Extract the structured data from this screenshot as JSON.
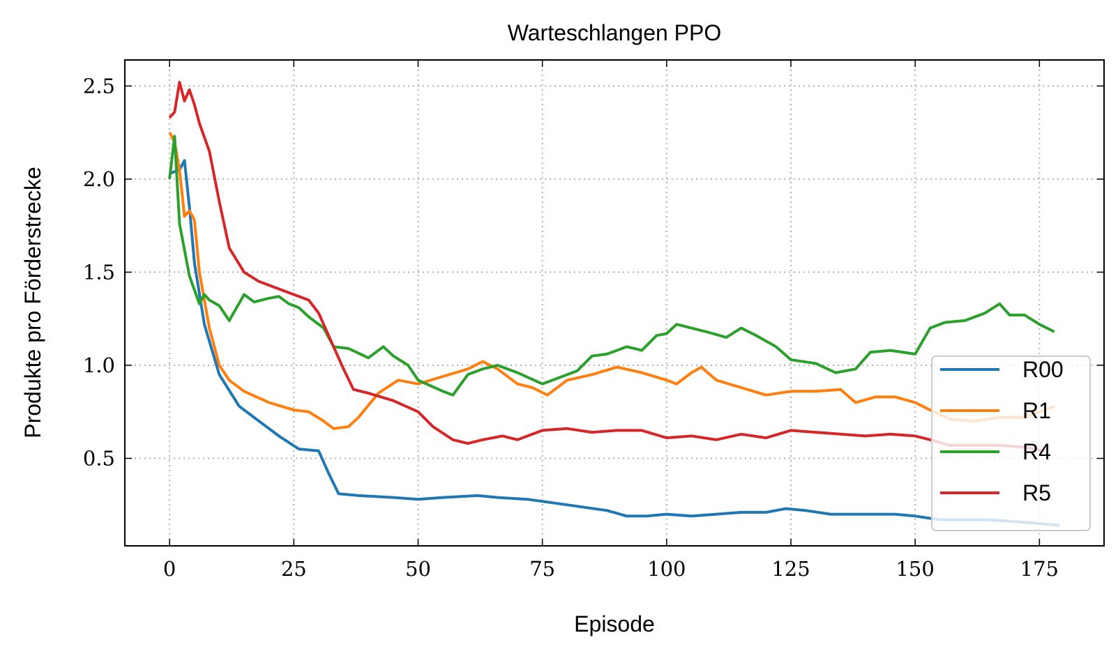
{
  "chart_data": {
    "type": "line",
    "title": "Warteschlangen PPO",
    "xlabel": "Episode",
    "ylabel": "Produkte pro Förderstrecke",
    "xlim": [
      -9,
      188
    ],
    "ylim": [
      0.03,
      2.64
    ],
    "xticks": [
      0,
      25,
      50,
      75,
      100,
      125,
      150,
      175
    ],
    "yticks": [
      0.5,
      1.0,
      1.5,
      2.0,
      2.5
    ],
    "xtick_labels": [
      "0",
      "25",
      "50",
      "75",
      "100",
      "125",
      "150",
      "175"
    ],
    "ytick_labels": [
      "0.5",
      "1.0",
      "1.5",
      "2.0",
      "2.5"
    ],
    "grid": true,
    "legend_position": "lower-right",
    "series": [
      {
        "name": "R00",
        "color": "#1f77b4",
        "points": [
          [
            0,
            2.03
          ],
          [
            2,
            2.05
          ],
          [
            3,
            2.1
          ],
          [
            4,
            1.85
          ],
          [
            5,
            1.55
          ],
          [
            7,
            1.22
          ],
          [
            10,
            0.95
          ],
          [
            14,
            0.78
          ],
          [
            18,
            0.7
          ],
          [
            22,
            0.62
          ],
          [
            26,
            0.55
          ],
          [
            30,
            0.54
          ],
          [
            32,
            0.42
          ],
          [
            34,
            0.31
          ],
          [
            38,
            0.3
          ],
          [
            45,
            0.29
          ],
          [
            50,
            0.28
          ],
          [
            55,
            0.29
          ],
          [
            62,
            0.3
          ],
          [
            66,
            0.29
          ],
          [
            72,
            0.28
          ],
          [
            80,
            0.25
          ],
          [
            88,
            0.22
          ],
          [
            92,
            0.19
          ],
          [
            96,
            0.19
          ],
          [
            100,
            0.2
          ],
          [
            105,
            0.19
          ],
          [
            110,
            0.2
          ],
          [
            115,
            0.21
          ],
          [
            120,
            0.21
          ],
          [
            124,
            0.23
          ],
          [
            128,
            0.22
          ],
          [
            133,
            0.2
          ],
          [
            140,
            0.2
          ],
          [
            146,
            0.2
          ],
          [
            150,
            0.19
          ],
          [
            155,
            0.17
          ],
          [
            160,
            0.17
          ],
          [
            165,
            0.17
          ],
          [
            170,
            0.16
          ],
          [
            175,
            0.15
          ],
          [
            179,
            0.14
          ]
        ]
      },
      {
        "name": "R1",
        "color": "#ff7f0e",
        "points": [
          [
            0,
            2.25
          ],
          [
            1,
            2.2
          ],
          [
            2,
            2.05
          ],
          [
            3,
            1.8
          ],
          [
            4,
            1.83
          ],
          [
            5,
            1.78
          ],
          [
            6,
            1.5
          ],
          [
            8,
            1.2
          ],
          [
            10,
            1.0
          ],
          [
            12,
            0.92
          ],
          [
            15,
            0.86
          ],
          [
            20,
            0.8
          ],
          [
            25,
            0.76
          ],
          [
            28,
            0.75
          ],
          [
            31,
            0.7
          ],
          [
            33,
            0.66
          ],
          [
            36,
            0.67
          ],
          [
            38,
            0.72
          ],
          [
            42,
            0.85
          ],
          [
            46,
            0.92
          ],
          [
            50,
            0.9
          ],
          [
            55,
            0.94
          ],
          [
            60,
            0.98
          ],
          [
            63,
            1.02
          ],
          [
            66,
            0.98
          ],
          [
            70,
            0.9
          ],
          [
            73,
            0.88
          ],
          [
            76,
            0.84
          ],
          [
            80,
            0.92
          ],
          [
            85,
            0.95
          ],
          [
            90,
            0.99
          ],
          [
            95,
            0.96
          ],
          [
            100,
            0.92
          ],
          [
            102,
            0.9
          ],
          [
            105,
            0.96
          ],
          [
            107,
            0.99
          ],
          [
            110,
            0.92
          ],
          [
            115,
            0.88
          ],
          [
            120,
            0.84
          ],
          [
            125,
            0.86
          ],
          [
            130,
            0.86
          ],
          [
            135,
            0.87
          ],
          [
            138,
            0.8
          ],
          [
            142,
            0.83
          ],
          [
            146,
            0.83
          ],
          [
            150,
            0.8
          ],
          [
            153,
            0.76
          ],
          [
            157,
            0.71
          ],
          [
            162,
            0.7
          ],
          [
            167,
            0.72
          ],
          [
            172,
            0.72
          ],
          [
            178,
            0.78
          ]
        ]
      },
      {
        "name": "R4",
        "color": "#2ca02c",
        "points": [
          [
            0,
            2.0
          ],
          [
            1,
            2.23
          ],
          [
            2,
            1.76
          ],
          [
            4,
            1.48
          ],
          [
            6,
            1.33
          ],
          [
            7,
            1.38
          ],
          [
            8,
            1.35
          ],
          [
            10,
            1.32
          ],
          [
            12,
            1.24
          ],
          [
            15,
            1.38
          ],
          [
            17,
            1.34
          ],
          [
            20,
            1.36
          ],
          [
            22,
            1.37
          ],
          [
            24,
            1.33
          ],
          [
            26,
            1.31
          ],
          [
            28,
            1.26
          ],
          [
            31,
            1.2
          ],
          [
            33,
            1.1
          ],
          [
            36,
            1.09
          ],
          [
            40,
            1.04
          ],
          [
            43,
            1.1
          ],
          [
            45,
            1.05
          ],
          [
            48,
            1.0
          ],
          [
            50,
            0.92
          ],
          [
            55,
            0.86
          ],
          [
            57,
            0.84
          ],
          [
            60,
            0.95
          ],
          [
            63,
            0.98
          ],
          [
            66,
            1.0
          ],
          [
            70,
            0.96
          ],
          [
            75,
            0.9
          ],
          [
            78,
            0.93
          ],
          [
            82,
            0.97
          ],
          [
            85,
            1.05
          ],
          [
            88,
            1.06
          ],
          [
            92,
            1.1
          ],
          [
            95,
            1.08
          ],
          [
            98,
            1.16
          ],
          [
            100,
            1.17
          ],
          [
            102,
            1.22
          ],
          [
            105,
            1.2
          ],
          [
            108,
            1.18
          ],
          [
            112,
            1.15
          ],
          [
            115,
            1.2
          ],
          [
            118,
            1.16
          ],
          [
            122,
            1.1
          ],
          [
            125,
            1.03
          ],
          [
            130,
            1.01
          ],
          [
            134,
            0.96
          ],
          [
            138,
            0.98
          ],
          [
            141,
            1.07
          ],
          [
            145,
            1.08
          ],
          [
            150,
            1.06
          ],
          [
            153,
            1.2
          ],
          [
            156,
            1.23
          ],
          [
            160,
            1.24
          ],
          [
            164,
            1.28
          ],
          [
            167,
            1.33
          ],
          [
            169,
            1.27
          ],
          [
            172,
            1.27
          ],
          [
            175,
            1.22
          ],
          [
            178,
            1.18
          ]
        ]
      },
      {
        "name": "R5",
        "color": "#d62728",
        "points": [
          [
            0,
            2.33
          ],
          [
            1,
            2.36
          ],
          [
            2,
            2.52
          ],
          [
            3,
            2.42
          ],
          [
            4,
            2.48
          ],
          [
            5,
            2.4
          ],
          [
            6,
            2.3
          ],
          [
            8,
            2.15
          ],
          [
            10,
            1.88
          ],
          [
            12,
            1.63
          ],
          [
            15,
            1.5
          ],
          [
            18,
            1.45
          ],
          [
            20,
            1.43
          ],
          [
            22,
            1.41
          ],
          [
            25,
            1.38
          ],
          [
            28,
            1.35
          ],
          [
            30,
            1.28
          ],
          [
            33,
            1.1
          ],
          [
            35,
            0.98
          ],
          [
            37,
            0.87
          ],
          [
            40,
            0.85
          ],
          [
            45,
            0.81
          ],
          [
            50,
            0.75
          ],
          [
            53,
            0.67
          ],
          [
            57,
            0.6
          ],
          [
            60,
            0.58
          ],
          [
            63,
            0.6
          ],
          [
            67,
            0.62
          ],
          [
            70,
            0.6
          ],
          [
            75,
            0.65
          ],
          [
            80,
            0.66
          ],
          [
            85,
            0.64
          ],
          [
            90,
            0.65
          ],
          [
            95,
            0.65
          ],
          [
            100,
            0.61
          ],
          [
            105,
            0.62
          ],
          [
            110,
            0.6
          ],
          [
            115,
            0.63
          ],
          [
            120,
            0.61
          ],
          [
            125,
            0.65
          ],
          [
            130,
            0.64
          ],
          [
            135,
            0.63
          ],
          [
            140,
            0.62
          ],
          [
            145,
            0.63
          ],
          [
            150,
            0.62
          ],
          [
            153,
            0.6
          ],
          [
            157,
            0.57
          ],
          [
            162,
            0.57
          ],
          [
            167,
            0.57
          ],
          [
            172,
            0.56
          ],
          [
            176,
            0.54
          ]
        ]
      }
    ]
  }
}
